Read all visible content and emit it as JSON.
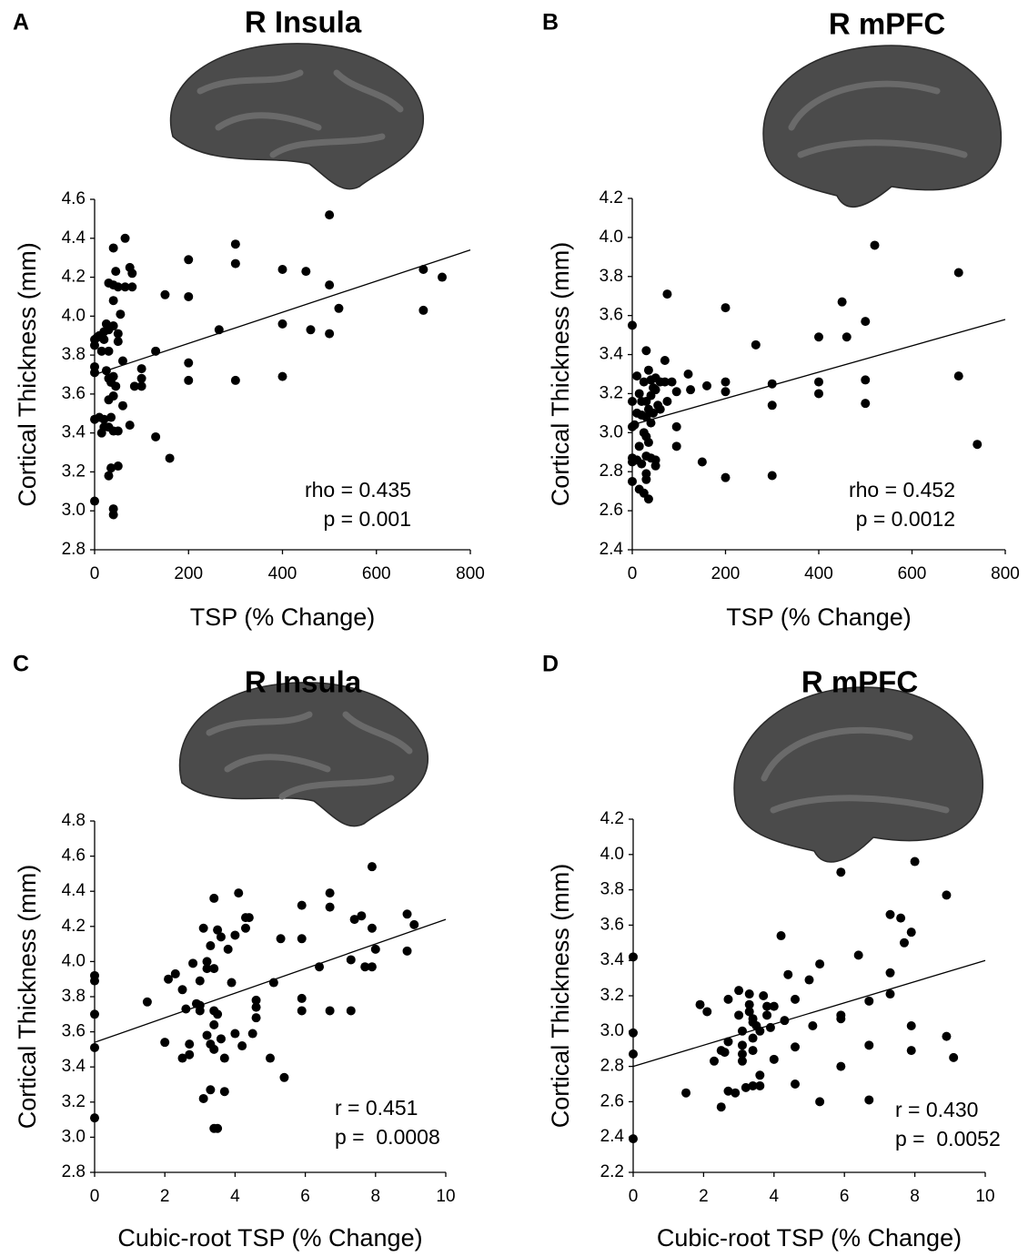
{
  "chart_data": [
    {
      "type": "scatter",
      "panel_label": "A",
      "title": "R Insula",
      "xlabel": "TSP (% Change)",
      "ylabel": "Cortical Thickness (mm)",
      "annotations": [
        "rho = 0.435",
        "p = 0.001"
      ],
      "color": "#000000",
      "x": [
        0,
        0,
        0,
        0,
        0,
        0,
        5,
        10,
        10,
        15,
        15,
        20,
        20,
        20,
        20,
        25,
        25,
        30,
        30,
        30,
        30,
        30,
        30,
        30,
        35,
        35,
        35,
        40,
        40,
        40,
        40,
        40,
        40,
        40,
        40,
        40,
        45,
        45,
        50,
        50,
        50,
        50,
        50,
        55,
        60,
        60,
        65,
        65,
        75,
        75,
        80,
        80,
        85,
        100,
        100,
        100,
        130,
        130,
        150,
        160,
        200,
        200,
        200,
        200,
        265,
        300,
        300,
        300,
        400,
        400,
        400,
        450,
        460,
        500,
        500,
        500,
        520,
        700,
        700,
        740
      ],
      "y": [
        3.05,
        3.47,
        3.71,
        3.74,
        3.85,
        3.88,
        3.89,
        3.9,
        3.48,
        3.82,
        3.4,
        3.88,
        3.92,
        3.43,
        3.47,
        3.96,
        3.72,
        4.17,
        3.93,
        3.82,
        3.68,
        3.57,
        3.43,
        3.18,
        3.22,
        3.66,
        3.48,
        4.35,
        4.16,
        4.08,
        3.95,
        3.69,
        3.59,
        3.41,
        3.01,
        2.98,
        4.23,
        3.64,
        4.15,
        3.91,
        3.87,
        3.41,
        3.23,
        4.01,
        3.77,
        3.54,
        4.15,
        4.4,
        4.25,
        3.44,
        4.22,
        4.15,
        3.64,
        3.73,
        3.68,
        3.64,
        3.82,
        3.38,
        4.11,
        3.27,
        4.29,
        4.1,
        3.76,
        3.67,
        3.93,
        4.37,
        4.27,
        3.67,
        4.24,
        3.96,
        3.69,
        4.23,
        3.93,
        4.52,
        4.16,
        3.91,
        4.04,
        4.24,
        4.03,
        4.2
      ],
      "xlim": [
        0,
        800
      ],
      "xticks": [
        0,
        200,
        400,
        600,
        800
      ],
      "ylim": [
        2.8,
        4.6
      ],
      "yticks": [
        {
          "value": 2.8,
          "label": "2.8"
        },
        {
          "value": 3.0,
          "label": "3.0"
        },
        {
          "value": 3.2,
          "label": "3.2"
        },
        {
          "value": 3.4,
          "label": "3.4"
        },
        {
          "value": 3.6,
          "label": "3.6"
        },
        {
          "value": 3.8,
          "label": "3.8"
        },
        {
          "value": 4.0,
          "label": "4.0"
        },
        {
          "value": 4.2,
          "label": "4.2"
        },
        {
          "value": 4.4,
          "label": "4.4"
        },
        {
          "value": 4.6,
          "label": "4.6"
        }
      ],
      "trendline": {
        "x": [
          0,
          800
        ],
        "y": [
          3.7,
          4.34
        ]
      }
    },
    {
      "type": "scatter",
      "panel_label": "B",
      "title": "R mPFC",
      "xlabel": "TSP (% Change)",
      "ylabel": "Cortical Thickness (mm)",
      "annotations": [
        "rho = 0.452",
        "p = 0.0012"
      ],
      "color": "#000000",
      "x": [
        0,
        0,
        0,
        0,
        0,
        0,
        5,
        10,
        10,
        10,
        15,
        15,
        15,
        20,
        20,
        20,
        25,
        25,
        25,
        30,
        30,
        30,
        30,
        30,
        30,
        30,
        35,
        35,
        35,
        35,
        40,
        40,
        40,
        40,
        45,
        45,
        50,
        50,
        50,
        50,
        55,
        60,
        60,
        70,
        70,
        75,
        75,
        85,
        95,
        95,
        95,
        120,
        125,
        150,
        160,
        200,
        200,
        200,
        200,
        265,
        300,
        300,
        300,
        400,
        400,
        400,
        450,
        460,
        500,
        500,
        500,
        520,
        700,
        700,
        740
      ],
      "y": [
        3.55,
        3.16,
        3.03,
        2.87,
        2.85,
        2.75,
        3.04,
        3.29,
        3.1,
        2.86,
        3.2,
        2.93,
        2.71,
        3.16,
        3.09,
        2.84,
        3.26,
        3.0,
        2.69,
        3.42,
        3.16,
        3.08,
        2.98,
        2.88,
        2.79,
        2.76,
        3.32,
        3.12,
        2.95,
        2.66,
        3.27,
        3.19,
        3.05,
        2.87,
        3.23,
        3.1,
        3.28,
        3.22,
        2.86,
        2.83,
        3.14,
        3.26,
        3.12,
        3.37,
        3.26,
        3.71,
        3.16,
        3.26,
        3.21,
        3.03,
        2.93,
        3.3,
        3.22,
        2.85,
        3.24,
        3.64,
        3.26,
        3.21,
        2.77,
        3.45,
        3.25,
        3.14,
        2.78,
        3.49,
        3.26,
        3.2,
        3.67,
        3.49,
        3.57,
        3.27,
        3.15,
        3.96,
        3.82,
        3.29,
        2.94
      ],
      "xlim": [
        0,
        800
      ],
      "xticks": [
        0,
        200,
        400,
        600,
        800
      ],
      "ylim": [
        2.4,
        4.2
      ],
      "yticks": [
        {
          "value": 2.4,
          "label": "2.4"
        },
        {
          "value": 2.6,
          "label": "2.6"
        },
        {
          "value": 2.8,
          "label": "2.8"
        },
        {
          "value": 3.0,
          "label": "3.0"
        },
        {
          "value": 3.2,
          "label": "3.2"
        },
        {
          "value": 3.4,
          "label": "3.4"
        },
        {
          "value": 3.6,
          "label": "3.6"
        },
        {
          "value": 3.8,
          "label": "3.8"
        },
        {
          "value": 4.0,
          "label": "4.0"
        },
        {
          "value": 4.2,
          "label": "4.2"
        }
      ],
      "trendline": {
        "x": [
          0,
          800
        ],
        "y": [
          3.04,
          3.58
        ]
      }
    },
    {
      "type": "scatter",
      "panel_label": "C",
      "title": "R Insula",
      "xlabel": "Cubic-root TSP (% Change)",
      "ylabel": "Cortical Thickness (mm)",
      "annotations": [
        "r = 0.451",
        "p =  0.0008"
      ],
      "color": "#000000",
      "x": [
        0,
        0,
        0,
        0,
        0,
        1.5,
        2,
        2.1,
        2.3,
        2.5,
        2.5,
        2.6,
        2.7,
        2.7,
        2.8,
        2.9,
        3.0,
        3.0,
        3.0,
        3.1,
        3.1,
        3.2,
        3.2,
        3.2,
        3.3,
        3.3,
        3.3,
        3.4,
        3.4,
        3.4,
        3.4,
        3.4,
        3.4,
        3.5,
        3.5,
        3.5,
        3.6,
        3.6,
        3.7,
        3.7,
        3.8,
        3.9,
        4.0,
        4.0,
        4.1,
        4.2,
        4.3,
        4.3,
        4.4,
        4.5,
        4.6,
        4.6,
        4.6,
        5.0,
        5.1,
        5.3,
        5.4,
        5.9,
        5.9,
        5.9,
        5.9,
        6.4,
        6.7,
        6.7,
        6.7,
        7.3,
        7.3,
        7.4,
        7.6,
        7.7,
        7.9,
        7.9,
        7.9,
        8.0,
        8.9,
        8.9,
        9.1
      ],
      "y": [
        3.11,
        3.51,
        3.7,
        3.89,
        3.92,
        3.77,
        3.54,
        3.9,
        3.93,
        3.45,
        3.84,
        3.73,
        3.47,
        3.53,
        3.99,
        3.76,
        3.72,
        3.75,
        3.89,
        4.19,
        3.22,
        3.58,
        3.96,
        4.0,
        3.27,
        3.53,
        4.09,
        3.05,
        3.5,
        3.64,
        3.72,
        3.96,
        4.36,
        3.05,
        4.18,
        3.7,
        3.56,
        4.14,
        3.45,
        3.26,
        4.07,
        3.88,
        4.15,
        3.59,
        4.39,
        3.52,
        4.19,
        4.25,
        4.25,
        3.59,
        3.78,
        3.74,
        3.68,
        3.45,
        3.88,
        4.13,
        3.34,
        4.32,
        4.13,
        3.79,
        3.72,
        3.97,
        4.39,
        4.31,
        3.72,
        3.72,
        4.01,
        4.24,
        4.26,
        3.97,
        4.54,
        4.19,
        3.97,
        4.07,
        4.27,
        4.06,
        4.21
      ],
      "xlim": [
        0,
        10
      ],
      "xticks": [
        0,
        2,
        4,
        6,
        8,
        10
      ],
      "ylim": [
        2.8,
        4.8
      ],
      "yticks": [
        {
          "value": 2.8,
          "label": "2.8"
        },
        {
          "value": 3.0,
          "label": "3.0"
        },
        {
          "value": 3.2,
          "label": "3.2"
        },
        {
          "value": 3.4,
          "label": "3.4"
        },
        {
          "value": 3.6,
          "label": "3.6"
        },
        {
          "value": 3.8,
          "label": "3.8"
        },
        {
          "value": 4.0,
          "label": "4.0"
        },
        {
          "value": 4.2,
          "label": "4.2"
        },
        {
          "value": 4.4,
          "label": "4.4"
        },
        {
          "value": 4.6,
          "label": "4.6"
        },
        {
          "value": 4.8,
          "label": "4.8"
        }
      ],
      "trendline": {
        "x": [
          0,
          10
        ],
        "y": [
          3.54,
          4.24
        ]
      }
    },
    {
      "type": "scatter",
      "panel_label": "D",
      "title": "R mPFC",
      "xlabel": "Cubic-root TSP (% Change)",
      "ylabel": "Cortical Thickness (mm)",
      "annotations": [
        "r = 0.430",
        "p =  0.0052"
      ],
      "color": "#000000",
      "x": [
        0,
        0,
        0,
        0,
        1.5,
        1.9,
        2.1,
        2.3,
        2.5,
        2.5,
        2.6,
        2.7,
        2.7,
        2.7,
        2.9,
        3.0,
        3.0,
        3.1,
        3.1,
        3.1,
        3.1,
        3.2,
        3.3,
        3.3,
        3.3,
        3.4,
        3.4,
        3.4,
        3.4,
        3.4,
        3.5,
        3.6,
        3.6,
        3.6,
        3.7,
        3.8,
        3.8,
        3.9,
        4.0,
        4.0,
        4.2,
        4.3,
        4.4,
        4.6,
        4.6,
        4.6,
        5.0,
        5.1,
        5.3,
        5.3,
        5.9,
        5.9,
        5.9,
        5.9,
        6.4,
        6.7,
        6.7,
        6.7,
        7.3,
        7.3,
        7.3,
        7.6,
        7.7,
        7.9,
        7.9,
        7.9,
        8.0,
        8.9,
        8.9,
        9.1
      ],
      "y": [
        2.39,
        2.87,
        2.99,
        3.42,
        2.65,
        3.15,
        3.11,
        2.83,
        2.89,
        2.57,
        2.88,
        2.94,
        3.18,
        2.66,
        2.65,
        3.23,
        3.09,
        3.0,
        2.92,
        2.87,
        2.83,
        2.68,
        3.21,
        3.15,
        3.11,
        3.07,
        3.05,
        2.96,
        2.89,
        2.69,
        3.03,
        3.0,
        2.75,
        2.69,
        3.2,
        3.14,
        3.09,
        3.02,
        2.84,
        3.14,
        3.54,
        3.06,
        3.32,
        3.18,
        2.91,
        2.7,
        3.29,
        3.03,
        3.38,
        2.6,
        3.9,
        3.09,
        3.07,
        2.8,
        3.43,
        3.17,
        2.92,
        2.61,
        3.66,
        3.33,
        3.21,
        3.64,
        3.5,
        3.56,
        3.03,
        2.89,
        3.96,
        3.77,
        2.97,
        2.85
      ],
      "xlim": [
        0,
        10
      ],
      "xticks": [
        0,
        2,
        4,
        6,
        8,
        10
      ],
      "ylim": [
        2.2,
        4.2
      ],
      "yticks": [
        {
          "value": 2.2,
          "label": "2.2"
        },
        {
          "value": 2.4,
          "label": "2.4"
        },
        {
          "value": 2.6,
          "label": "2.6"
        },
        {
          "value": 2.8,
          "label": "2.8"
        },
        {
          "value": 3.0,
          "label": "3.0"
        },
        {
          "value": 3.2,
          "label": "3.2"
        },
        {
          "value": 3.4,
          "label": "3.4"
        },
        {
          "value": 3.6,
          "label": "3.6"
        },
        {
          "value": 3.8,
          "label": "3.8"
        },
        {
          "value": 4.0,
          "label": "4.0"
        },
        {
          "value": 4.2,
          "label": "4.2"
        }
      ],
      "trendline": {
        "x": [
          0,
          10
        ],
        "y": [
          2.8,
          3.4
        ]
      }
    }
  ]
}
